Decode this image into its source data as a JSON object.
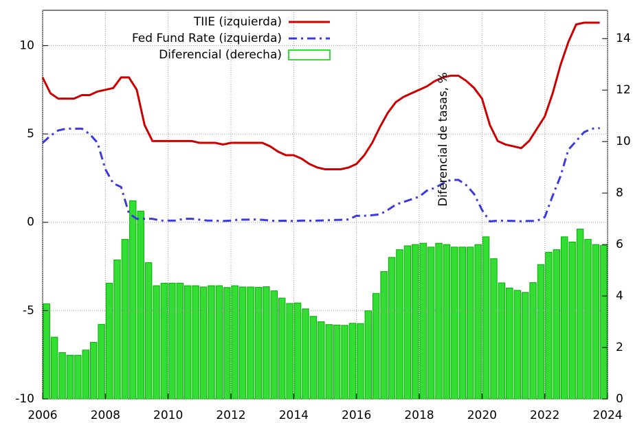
{
  "chart_data": {
    "type": "line_bar",
    "y2label": "Diferencial de tasas, %",
    "x": [
      2006,
      2006.25,
      2006.5,
      2006.75,
      2007,
      2007.25,
      2007.5,
      2007.75,
      2008,
      2008.25,
      2008.5,
      2008.75,
      2009,
      2009.25,
      2009.5,
      2009.75,
      2010,
      2010.25,
      2010.5,
      2010.75,
      2011,
      2011.25,
      2011.5,
      2011.75,
      2012,
      2012.25,
      2012.5,
      2012.75,
      2013,
      2013.25,
      2013.5,
      2013.75,
      2014,
      2014.25,
      2014.5,
      2014.75,
      2015,
      2015.25,
      2015.5,
      2015.75,
      2016,
      2016.25,
      2016.5,
      2016.75,
      2017,
      2017.25,
      2017.5,
      2017.75,
      2018,
      2018.25,
      2018.5,
      2018.75,
      2019,
      2019.25,
      2019.5,
      2019.75,
      2020,
      2020.25,
      2020.5,
      2020.75,
      2021,
      2021.25,
      2021.5,
      2021.75,
      2022,
      2022.25,
      2022.5,
      2022.75,
      2023,
      2023.25,
      2023.5,
      2023.75
    ],
    "series": [
      {
        "name": "TIIE (izquierda)",
        "color": "#cc0000",
        "style": "solid",
        "axis": "y",
        "values": [
          8.2,
          7.3,
          7.0,
          7.0,
          7.0,
          7.2,
          7.2,
          7.4,
          7.5,
          7.6,
          8.2,
          8.2,
          7.5,
          5.5,
          4.6,
          4.6,
          4.6,
          4.6,
          4.6,
          4.6,
          4.5,
          4.5,
          4.5,
          4.4,
          4.5,
          4.5,
          4.5,
          4.5,
          4.5,
          4.3,
          4.0,
          3.8,
          3.8,
          3.6,
          3.3,
          3.1,
          3.0,
          3.0,
          3.0,
          3.1,
          3.3,
          3.8,
          4.5,
          5.4,
          6.2,
          6.8,
          7.1,
          7.3,
          7.5,
          7.7,
          8.0,
          8.2,
          8.3,
          8.3,
          8.0,
          7.6,
          7.0,
          5.5,
          4.6,
          4.4,
          4.3,
          4.2,
          4.6,
          5.3,
          6.0,
          7.3,
          8.9,
          10.2,
          11.2,
          11.3,
          11.3,
          11.3
        ]
      },
      {
        "name": "Fed Fund Rate (izquierda)",
        "color": "#3a3adf",
        "style": "dashdot",
        "axis": "y",
        "values": [
          4.5,
          4.9,
          5.2,
          5.3,
          5.3,
          5.3,
          5.0,
          4.5,
          3.0,
          2.2,
          2.0,
          0.5,
          0.2,
          0.2,
          0.2,
          0.1,
          0.1,
          0.1,
          0.2,
          0.2,
          0.15,
          0.1,
          0.1,
          0.07,
          0.1,
          0.15,
          0.15,
          0.16,
          0.14,
          0.1,
          0.08,
          0.09,
          0.07,
          0.1,
          0.09,
          0.1,
          0.11,
          0.13,
          0.14,
          0.16,
          0.37,
          0.37,
          0.4,
          0.45,
          0.7,
          1.0,
          1.15,
          1.3,
          1.45,
          1.8,
          1.95,
          2.2,
          2.4,
          2.4,
          2.1,
          1.6,
          0.7,
          0.05,
          0.09,
          0.09,
          0.08,
          0.06,
          0.08,
          0.08,
          0.3,
          1.5,
          2.6,
          4.1,
          4.6,
          5.1,
          5.3,
          5.33
        ]
      },
      {
        "name": "Diferencial (derecha)",
        "color": "#33dd33",
        "style": "bar",
        "axis": "y2",
        "values": [
          3.7,
          2.4,
          1.8,
          1.7,
          1.7,
          1.9,
          2.2,
          2.9,
          4.5,
          5.4,
          6.2,
          7.7,
          7.3,
          5.3,
          4.4,
          4.5,
          4.5,
          4.5,
          4.4,
          4.4,
          4.35,
          4.4,
          4.4,
          4.33,
          4.4,
          4.35,
          4.35,
          4.34,
          4.36,
          4.2,
          3.92,
          3.71,
          3.73,
          3.5,
          3.21,
          3.0,
          2.89,
          2.87,
          2.86,
          2.94,
          2.93,
          3.43,
          4.1,
          4.95,
          5.5,
          5.8,
          5.95,
          6.0,
          6.05,
          5.9,
          6.05,
          6.0,
          5.9,
          5.9,
          5.9,
          6.0,
          6.3,
          5.45,
          4.51,
          4.31,
          4.22,
          4.14,
          4.52,
          5.22,
          5.7,
          5.8,
          6.3,
          6.1,
          6.6,
          6.2,
          6.0,
          5.97
        ]
      }
    ],
    "xlim": [
      2006,
      2024
    ],
    "xticks": [
      2006,
      2008,
      2010,
      2012,
      2014,
      2016,
      2018,
      2020,
      2022,
      2024
    ],
    "ylim": [
      -10,
      12
    ],
    "yticks": [
      -10,
      -5,
      0,
      5,
      10
    ],
    "y2lim": [
      0,
      15.1
    ],
    "y2ticks": [
      0,
      2,
      4,
      6,
      8,
      10,
      12,
      14
    ],
    "grid": true,
    "legend": "top-center"
  }
}
